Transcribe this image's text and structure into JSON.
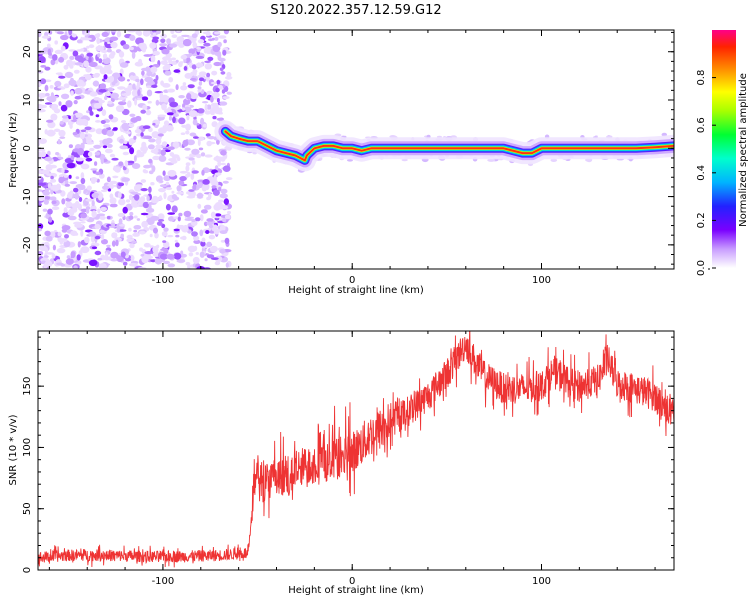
{
  "figure": {
    "title": "S120.2022.357.12.59.G12"
  },
  "chart_data": [
    {
      "type": "heatmap",
      "xlabel": "Height of straight line (km)",
      "ylabel": "Frequency (Hz)",
      "xlim": [
        -166,
        170
      ],
      "ylim": [
        -25,
        24.5
      ],
      "x_ticks": [
        -100,
        0,
        100
      ],
      "y_ticks": [
        -20,
        -10,
        0,
        10,
        20
      ],
      "colorbar": {
        "label": "Normalized spectral amplitude",
        "range": [
          0,
          1
        ],
        "ticks": [
          0.0,
          0.2,
          0.4,
          0.6,
          0.8
        ],
        "colormap": "hsv-rainbow (purple to red)"
      },
      "noise_region_x": [
        -166,
        -67
      ],
      "ridge": {
        "x": [
          -67,
          -64,
          -60,
          -55,
          -50,
          -45,
          -40,
          -35,
          -30,
          -25,
          -24,
          -20,
          -15,
          -10,
          -5,
          0,
          5,
          10,
          20,
          40,
          60,
          80,
          90,
          95,
          100,
          110,
          130,
          150,
          160,
          170
        ],
        "y": [
          3.5,
          2.5,
          2,
          1.5,
          1.5,
          0.5,
          -0.5,
          -1,
          -1.5,
          -2.5,
          -1.5,
          0,
          0.5,
          0.5,
          0,
          0,
          -0.5,
          0,
          0,
          0,
          0,
          0,
          -1,
          -1,
          0,
          0,
          0,
          0,
          0.2,
          0.5
        ]
      }
    },
    {
      "type": "line",
      "xlabel": "Height of straight line (km)",
      "ylabel": "SNR (10 * v/v)",
      "xlim": [
        -166,
        170
      ],
      "ylim": [
        0,
        195
      ],
      "x_ticks": [
        -100,
        0,
        100
      ],
      "y_ticks": [
        0,
        50,
        100,
        150
      ],
      "color": "#ee3333",
      "series": [
        {
          "x": [
            -166,
            -150,
            -130,
            -110,
            -90,
            -70,
            -55,
            -53,
            -52,
            -50,
            -45,
            -40,
            -30,
            -20,
            -10,
            0,
            10,
            20,
            30,
            40,
            50,
            55,
            60,
            65,
            70,
            80,
            90,
            100,
            105,
            110,
            115,
            120,
            130,
            135,
            140,
            150,
            160,
            170
          ],
          "y": [
            10,
            12,
            12,
            11,
            11,
            12,
            14,
            40,
            75,
            70,
            75,
            72,
            80,
            88,
            90,
            95,
            110,
            120,
            130,
            142,
            160,
            172,
            185,
            170,
            158,
            148,
            148,
            150,
            160,
            160,
            152,
            150,
            155,
            172,
            152,
            148,
            142,
            125
          ]
        }
      ]
    }
  ]
}
